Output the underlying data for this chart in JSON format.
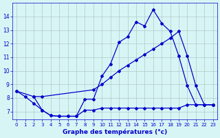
{
  "xlabel": "Graphe des températures (°c)",
  "bg_color": "#d8f5f5",
  "grid_color": "#b0c8c8",
  "line_color": "#0000cc",
  "xlim": [
    -0.5,
    23.5
  ],
  "ylim": [
    6.4,
    15.0
  ],
  "xticks": [
    0,
    1,
    2,
    3,
    4,
    5,
    6,
    7,
    8,
    9,
    10,
    11,
    12,
    13,
    14,
    15,
    16,
    17,
    18,
    19,
    20,
    21,
    22,
    23
  ],
  "yticks": [
    7,
    8,
    9,
    10,
    11,
    12,
    13,
    14
  ],
  "hours": [
    0,
    1,
    2,
    3,
    4,
    5,
    6,
    7,
    8,
    9,
    10,
    11,
    12,
    13,
    14,
    15,
    16,
    17,
    18,
    19,
    20,
    21,
    22,
    23
  ],
  "s1_x": [
    0,
    1,
    2,
    3,
    4,
    5,
    6,
    7,
    8,
    9,
    10,
    11,
    12,
    13,
    14,
    15,
    16,
    17,
    18,
    19,
    20,
    21,
    22,
    23
  ],
  "s1_y": [
    8.5,
    8.1,
    7.6,
    7.1,
    6.7,
    6.65,
    6.65,
    6.65,
    7.9,
    7.9,
    9.6,
    10.5,
    12.1,
    12.5,
    13.6,
    13.3,
    14.5,
    13.5,
    12.9,
    11.1,
    8.9,
    7.5,
    7.5,
    7.5
  ],
  "s2_x": [
    0,
    2,
    3,
    9,
    10,
    11,
    12,
    13,
    14,
    15,
    16,
    17,
    18,
    19,
    20,
    21,
    22,
    23
  ],
  "s2_y": [
    8.5,
    8.1,
    8.1,
    8.6,
    9.0,
    9.5,
    10.0,
    10.4,
    10.8,
    11.2,
    11.6,
    12.0,
    12.4,
    12.9,
    11.1,
    8.9,
    7.5,
    7.5
  ],
  "s3_x": [
    2,
    3,
    4,
    5,
    6,
    7,
    8,
    9,
    10,
    11,
    12,
    13,
    14,
    15,
    16,
    17,
    18,
    19,
    20,
    21,
    22,
    23
  ],
  "s3_y": [
    8.1,
    7.1,
    6.7,
    6.65,
    6.65,
    6.65,
    7.1,
    7.1,
    7.25,
    7.25,
    7.25,
    7.25,
    7.25,
    7.25,
    7.25,
    7.25,
    7.25,
    7.25,
    7.5,
    7.5,
    7.5,
    7.5
  ]
}
